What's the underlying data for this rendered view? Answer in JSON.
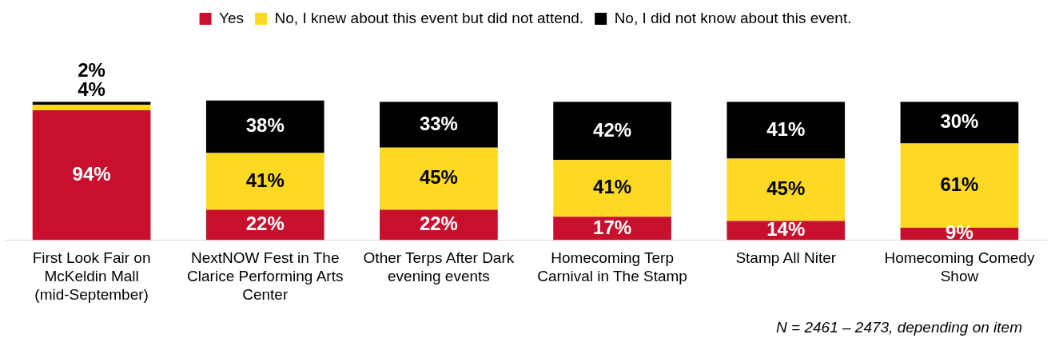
{
  "chart_data": {
    "type": "bar",
    "stacked": true,
    "legend": "top",
    "categories": [
      "First Look Fair on McKeldin Mall (mid-September)",
      "NextNOW Fest in The Clarice Performing Arts Center",
      "Other Terps After Dark evening events",
      "Homecoming Terp Carnival in The Stamp",
      "Stamp All Niter",
      "Homecoming Comedy Show"
    ],
    "series": [
      {
        "name": "Yes",
        "color": "#c8102e",
        "values": [
          94,
          22,
          22,
          17,
          14,
          9
        ],
        "value_labels": [
          "94%",
          "22%",
          "22%",
          "17%",
          "14%",
          "9%"
        ]
      },
      {
        "name": "No, I knew about this event but did not attend.",
        "color": "#fdd923",
        "values": [
          4,
          41,
          45,
          41,
          45,
          61
        ],
        "value_labels": [
          "4%",
          "41%",
          "45%",
          "41%",
          "45%",
          "61%"
        ]
      },
      {
        "name": "No, I did not know about this event.",
        "color": "#000000",
        "values": [
          2,
          38,
          33,
          42,
          41,
          30
        ],
        "value_labels": [
          "2%",
          "38%",
          "33%",
          "42%",
          "41%",
          "30%"
        ]
      }
    ],
    "annotations": [
      "N = 2461 – 2473, depending on item"
    ]
  }
}
